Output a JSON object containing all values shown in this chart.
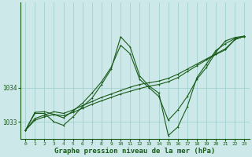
{
  "background_color": "#cce8e8",
  "plot_bg_color": "#cce8e8",
  "grid_color": "#99cccc",
  "line_color": "#1a5c1a",
  "xlabel": "Graphe pression niveau de la mer (hPa)",
  "xlabel_fontsize": 6.5,
  "xlabel_bold": true,
  "ylim": [
    1032.5,
    1036.5
  ],
  "xlim": [
    -0.5,
    23.5
  ],
  "yticks": [
    1033,
    1034
  ],
  "xticks": [
    0,
    1,
    2,
    3,
    4,
    5,
    6,
    7,
    8,
    9,
    10,
    11,
    12,
    13,
    14,
    15,
    16,
    17,
    18,
    19,
    20,
    21,
    22,
    23
  ],
  "series_jagged": [
    1032.75,
    1033.25,
    1033.25,
    1033.0,
    1032.9,
    1033.15,
    1033.45,
    1033.7,
    1034.1,
    1034.55,
    1035.5,
    1035.2,
    1034.35,
    1034.05,
    1033.85,
    1032.6,
    1032.85,
    1033.45,
    1034.3,
    1034.7,
    1035.1,
    1035.3,
    1035.45,
    1035.5
  ],
  "series_smooth1": [
    1032.75,
    1033.1,
    1033.2,
    1033.3,
    1033.25,
    1033.35,
    1033.48,
    1033.6,
    1033.72,
    1033.82,
    1033.92,
    1034.02,
    1034.1,
    1034.15,
    1034.2,
    1034.28,
    1034.4,
    1034.55,
    1034.7,
    1034.85,
    1035.0,
    1035.15,
    1035.42,
    1035.52
  ],
  "series_smooth2": [
    1032.75,
    1033.05,
    1033.15,
    1033.22,
    1033.18,
    1033.28,
    1033.4,
    1033.52,
    1033.62,
    1033.72,
    1033.82,
    1033.9,
    1033.98,
    1034.05,
    1034.1,
    1034.18,
    1034.3,
    1034.48,
    1034.65,
    1034.82,
    1034.98,
    1035.12,
    1035.42,
    1035.52
  ],
  "series_long": [
    1032.75,
    1033.28,
    1033.3,
    1033.22,
    1033.12,
    1033.32,
    1033.55,
    1033.85,
    1034.18,
    1034.6,
    1035.25,
    1035.0,
    1034.25,
    1034.0,
    1033.75,
    1033.05,
    1033.35,
    1033.75,
    1034.25,
    1034.6,
    1035.05,
    1035.38,
    1035.48,
    1035.52
  ]
}
